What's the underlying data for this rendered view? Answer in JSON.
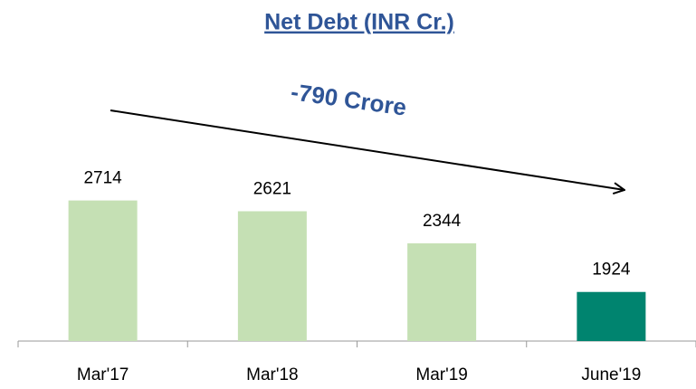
{
  "chart_data": {
    "type": "bar",
    "title": "Net Debt (INR Cr.)",
    "annotation": "-790 Crore",
    "categories": [
      "Mar'17",
      "Mar'18",
      "Mar'19",
      "June'19"
    ],
    "values": [
      2714,
      2621,
      2344,
      1924
    ],
    "colors": [
      "#c5e0b4",
      "#c5e0b4",
      "#c5e0b4",
      "#00846f"
    ],
    "ylim": [
      1500,
      3000
    ],
    "grid": false
  }
}
